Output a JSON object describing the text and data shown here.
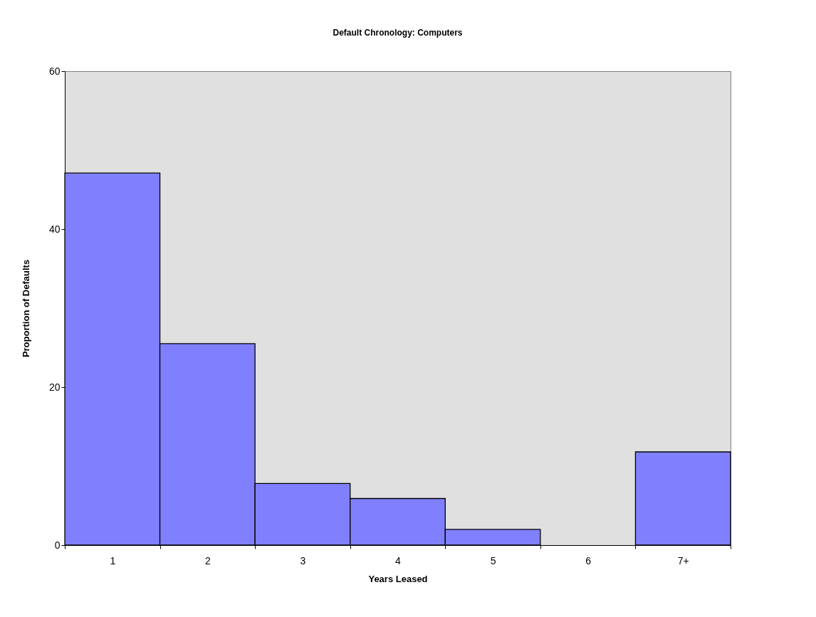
{
  "chart_data": {
    "type": "bar",
    "title": "Default Chronology:  Computers",
    "xlabel": "Years Leased",
    "ylabel": "Proportion of Defaults",
    "categories": [
      "1",
      "2",
      "3",
      "4",
      "5",
      "6",
      "7+"
    ],
    "values": [
      47.1,
      25.5,
      7.8,
      5.9,
      2.0,
      0,
      11.8
    ],
    "color": "#8080ff",
    "ylim": [
      0,
      60
    ],
    "yticks": [
      0,
      20,
      40,
      60
    ],
    "grid": false
  }
}
